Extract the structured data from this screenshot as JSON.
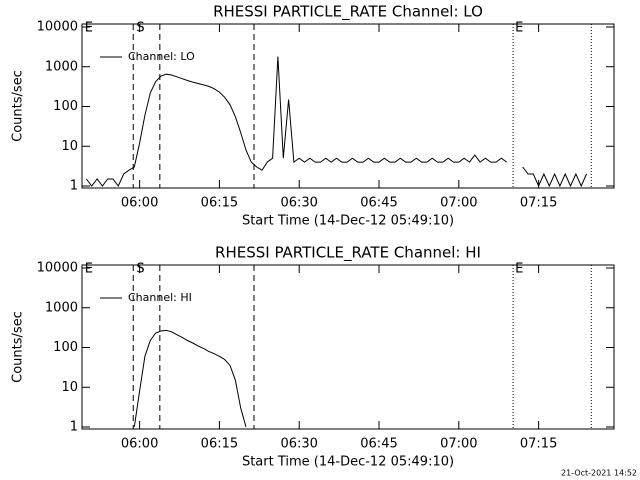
{
  "chart_data": [
    {
      "type": "line",
      "title": "RHESSI PARTICLE_RATE Channel: LO",
      "x_label": "Start Time (14-Dec-12 05:49:10)",
      "y_label": "Counts/sec",
      "log_y": true,
      "legend": "upper left",
      "grid": false,
      "xlim": [
        349.17,
        449.17
      ],
      "xticks": [
        {
          "value": 360,
          "label": "06:00"
        },
        {
          "value": 375,
          "label": "06:15"
        },
        {
          "value": 390,
          "label": "06:30"
        },
        {
          "value": 405,
          "label": "06:45"
        },
        {
          "value": 420,
          "label": "07:00"
        },
        {
          "value": 435,
          "label": "07:15"
        }
      ],
      "ylim": [
        1,
        10000
      ],
      "yticks": [
        1,
        10,
        100,
        1000,
        10000
      ],
      "vlines": [
        {
          "x": 358.8,
          "style": "dashed"
        },
        {
          "x": 363.8,
          "style": "dashed"
        },
        {
          "x": 381.5,
          "style": "dashed"
        },
        {
          "x": 430.2,
          "style": "dotted"
        },
        {
          "x": 444.9,
          "style": "dotted"
        }
      ],
      "annotations": [
        {
          "text": "E",
          "x": 349.5
        },
        {
          "text": "S",
          "x": 359.2
        },
        {
          "text": "E",
          "x": 430.4
        }
      ],
      "x": [
        350,
        351,
        352,
        353,
        354,
        355,
        356,
        357,
        358,
        359,
        360,
        361,
        362,
        363,
        364,
        365,
        366,
        367,
        368,
        369,
        370,
        371,
        372,
        373,
        374,
        375,
        376,
        377,
        378,
        379,
        380,
        381,
        382,
        383,
        384,
        385,
        386,
        387,
        388,
        389,
        390,
        391,
        392,
        393,
        394,
        395,
        396,
        397,
        398,
        399,
        400,
        401,
        402,
        403,
        404,
        405,
        406,
        407,
        408,
        409,
        410,
        411,
        412,
        413,
        414,
        415,
        416,
        417,
        418,
        419,
        420,
        421,
        422,
        423,
        424,
        425,
        426,
        427,
        428,
        429,
        430,
        431,
        432,
        433,
        434,
        435,
        436,
        437,
        438,
        439,
        440,
        441,
        442,
        443,
        444,
        445
      ],
      "series": [
        {
          "name": "Channel: LO",
          "color": "#000000",
          "values": [
            1.5,
            1,
            1.5,
            1,
            1.5,
            1.5,
            1,
            2,
            2.5,
            3,
            12,
            60,
            220,
            420,
            580,
            650,
            620,
            560,
            500,
            450,
            410,
            380,
            350,
            320,
            280,
            230,
            170,
            110,
            55,
            22,
            8,
            4,
            3,
            2.5,
            4,
            5,
            1800,
            5,
            150,
            4,
            5,
            4,
            5,
            4,
            4,
            5,
            4,
            5,
            4,
            4,
            5,
            4,
            4,
            5,
            4,
            4,
            5,
            4,
            4,
            5,
            4,
            4,
            5,
            4,
            4,
            5,
            4,
            4,
            5,
            4,
            4,
            5,
            4,
            6,
            4,
            5,
            4,
            4,
            5,
            4,
            null,
            null,
            3,
            2,
            2,
            1,
            2,
            1,
            2,
            1,
            2,
            1,
            2,
            1,
            2,
            null
          ]
        }
      ]
    },
    {
      "type": "line",
      "title": "RHESSI PARTICLE_RATE Channel: HI",
      "x_label": "Start Time (14-Dec-12 05:49:10)",
      "y_label": "Counts/sec",
      "log_y": true,
      "legend": "upper left",
      "grid": false,
      "xlim": [
        349.17,
        449.17
      ],
      "xticks": [
        {
          "value": 360,
          "label": "06:00"
        },
        {
          "value": 375,
          "label": "06:15"
        },
        {
          "value": 390,
          "label": "06:30"
        },
        {
          "value": 405,
          "label": "06:45"
        },
        {
          "value": 420,
          "label": "07:00"
        },
        {
          "value": 435,
          "label": "07:15"
        }
      ],
      "ylim": [
        1,
        10000
      ],
      "yticks": [
        1,
        10,
        100,
        1000,
        10000
      ],
      "vlines": [
        {
          "x": 358.8,
          "style": "dashed"
        },
        {
          "x": 363.8,
          "style": "dashed"
        },
        {
          "x": 381.5,
          "style": "dashed"
        },
        {
          "x": 430.2,
          "style": "dotted"
        },
        {
          "x": 444.9,
          "style": "dotted"
        }
      ],
      "annotations": [
        {
          "text": "E",
          "x": 349.5
        },
        {
          "text": "S",
          "x": 359.2
        },
        {
          "text": "E",
          "x": 430.4
        }
      ],
      "x": [
        359,
        360,
        361,
        362,
        363,
        364,
        365,
        366,
        367,
        368,
        369,
        370,
        371,
        372,
        373,
        374,
        375,
        376,
        377,
        378,
        379,
        380
      ],
      "series": [
        {
          "name": "Channel: HI",
          "color": "#000000",
          "values": [
            1,
            8,
            60,
            150,
            230,
            260,
            270,
            250,
            210,
            180,
            150,
            130,
            110,
            95,
            80,
            70,
            60,
            50,
            35,
            15,
            3,
            1
          ]
        }
      ]
    }
  ],
  "footer": "21-Oct-2021 14:52"
}
